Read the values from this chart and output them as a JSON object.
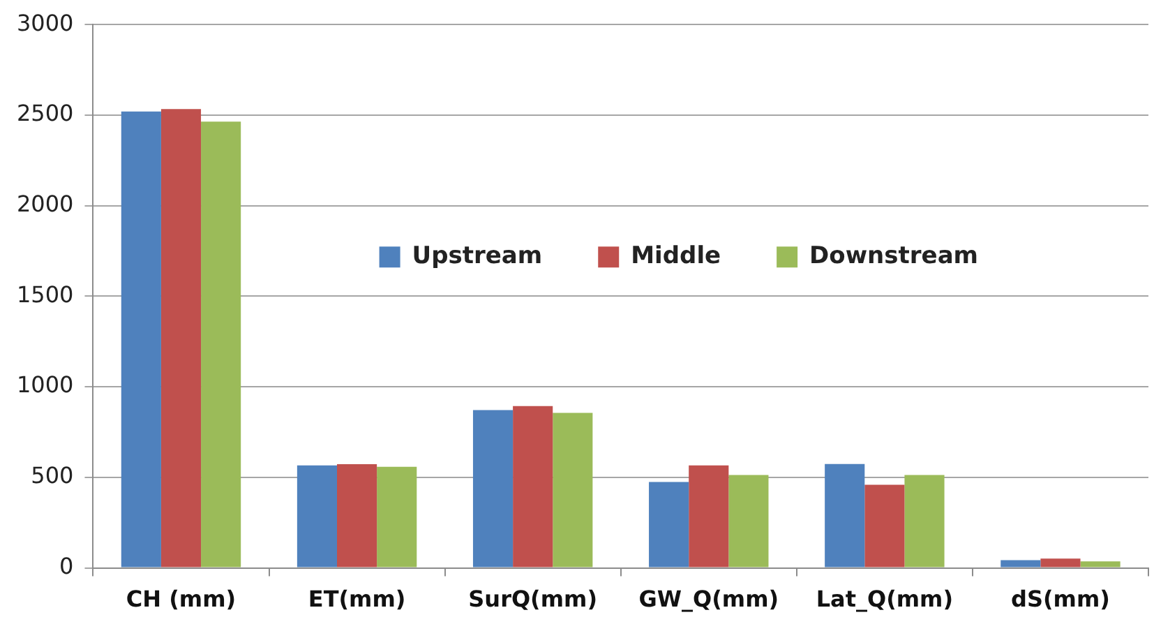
{
  "chart_data": {
    "type": "bar",
    "categories": [
      "CH (mm)",
      "ET(mm)",
      "SurQ(mm)",
      "GW_Q(mm)",
      "Lat_Q(mm)",
      "dS(mm)"
    ],
    "series": [
      {
        "name": "Upstream",
        "color": "#4f81bd",
        "values": [
          2520,
          566,
          871,
          474,
          574,
          43
        ]
      },
      {
        "name": "Middle",
        "color": "#c0504d",
        "values": [
          2533,
          573,
          894,
          566,
          459,
          51
        ]
      },
      {
        "name": "Downstream",
        "color": "#9bbb59",
        "values": [
          2464,
          558,
          856,
          513,
          513,
          36
        ]
      }
    ],
    "ylim": [
      0,
      3000
    ],
    "yticks": [
      0,
      500,
      1000,
      1500,
      2000,
      2500,
      3000
    ],
    "grid": "y",
    "legend": "top right"
  }
}
